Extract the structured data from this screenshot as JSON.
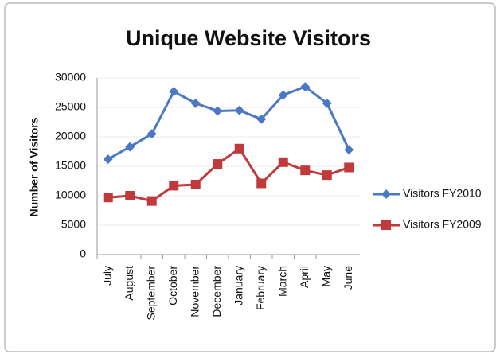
{
  "chart_data": {
    "type": "line",
    "title": "Unique Website Visitors",
    "y_label": "Number of Visitors",
    "categories": [
      "July",
      "August",
      "September",
      "October",
      "November",
      "December",
      "January",
      "February",
      "March",
      "April",
      "May",
      "June"
    ],
    "series": [
      {
        "name": "Visitors FY2010",
        "color": "#4a78c2",
        "marker": "diamond",
        "values": [
          16200,
          18300,
          20500,
          27700,
          25700,
          24400,
          24500,
          23000,
          27100,
          28500,
          25700,
          17800
        ]
      },
      {
        "name": "Visitors FY2009",
        "color": "#c0393b",
        "marker": "square",
        "values": [
          9700,
          10000,
          9100,
          11700,
          11900,
          15400,
          18000,
          12100,
          15700,
          14300,
          13500,
          14800
        ]
      }
    ],
    "ylim": [
      0,
      30000
    ],
    "yticks": [
      0,
      5000,
      10000,
      15000,
      20000,
      25000,
      30000
    ],
    "grid": true,
    "legend": "right"
  }
}
